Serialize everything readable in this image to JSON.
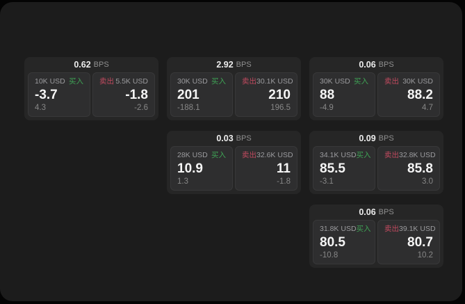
{
  "labels": {
    "bps_unit": "BPS",
    "buy": "买入",
    "sell": "卖出"
  },
  "colors": {
    "buy_green": "#3fa355",
    "sell_red": "#c04a5f",
    "panel_bg": "#1c1c1c",
    "card_bg": "#262626",
    "tile_bg": "#2e2e2f"
  },
  "cards": [
    {
      "bps": "0.62",
      "buy": {
        "notional": "10K USD",
        "value": "-3.7",
        "sub": "4.3"
      },
      "sell": {
        "notional": "5.5K USD",
        "value": "-1.8",
        "sub": "-2.6"
      }
    },
    {
      "bps": "2.92",
      "buy": {
        "notional": "30K USD",
        "value": "201",
        "sub": "-188.1"
      },
      "sell": {
        "notional": "30.1K USD",
        "value": "210",
        "sub": "196.5"
      }
    },
    {
      "bps": "0.06",
      "buy": {
        "notional": "30K USD",
        "value": "88",
        "sub": "-4.9"
      },
      "sell": {
        "notional": "30K USD",
        "value": "88.2",
        "sub": "4.7"
      }
    },
    {
      "bps": "0.03",
      "buy": {
        "notional": "28K USD",
        "value": "10.9",
        "sub": "1.3"
      },
      "sell": {
        "notional": "32.6K USD",
        "value": "11",
        "sub": "-1.8"
      }
    },
    {
      "bps": "0.09",
      "buy": {
        "notional": "34.1K USD",
        "value": "85.5",
        "sub": "-3.1"
      },
      "sell": {
        "notional": "32.8K USD",
        "value": "85.8",
        "sub": "3.0"
      }
    },
    {
      "bps": "0.06",
      "buy": {
        "notional": "31.8K USD",
        "value": "80.5",
        "sub": "-10.8"
      },
      "sell": {
        "notional": "39.1K USD",
        "value": "80.7",
        "sub": "10.2"
      }
    }
  ]
}
